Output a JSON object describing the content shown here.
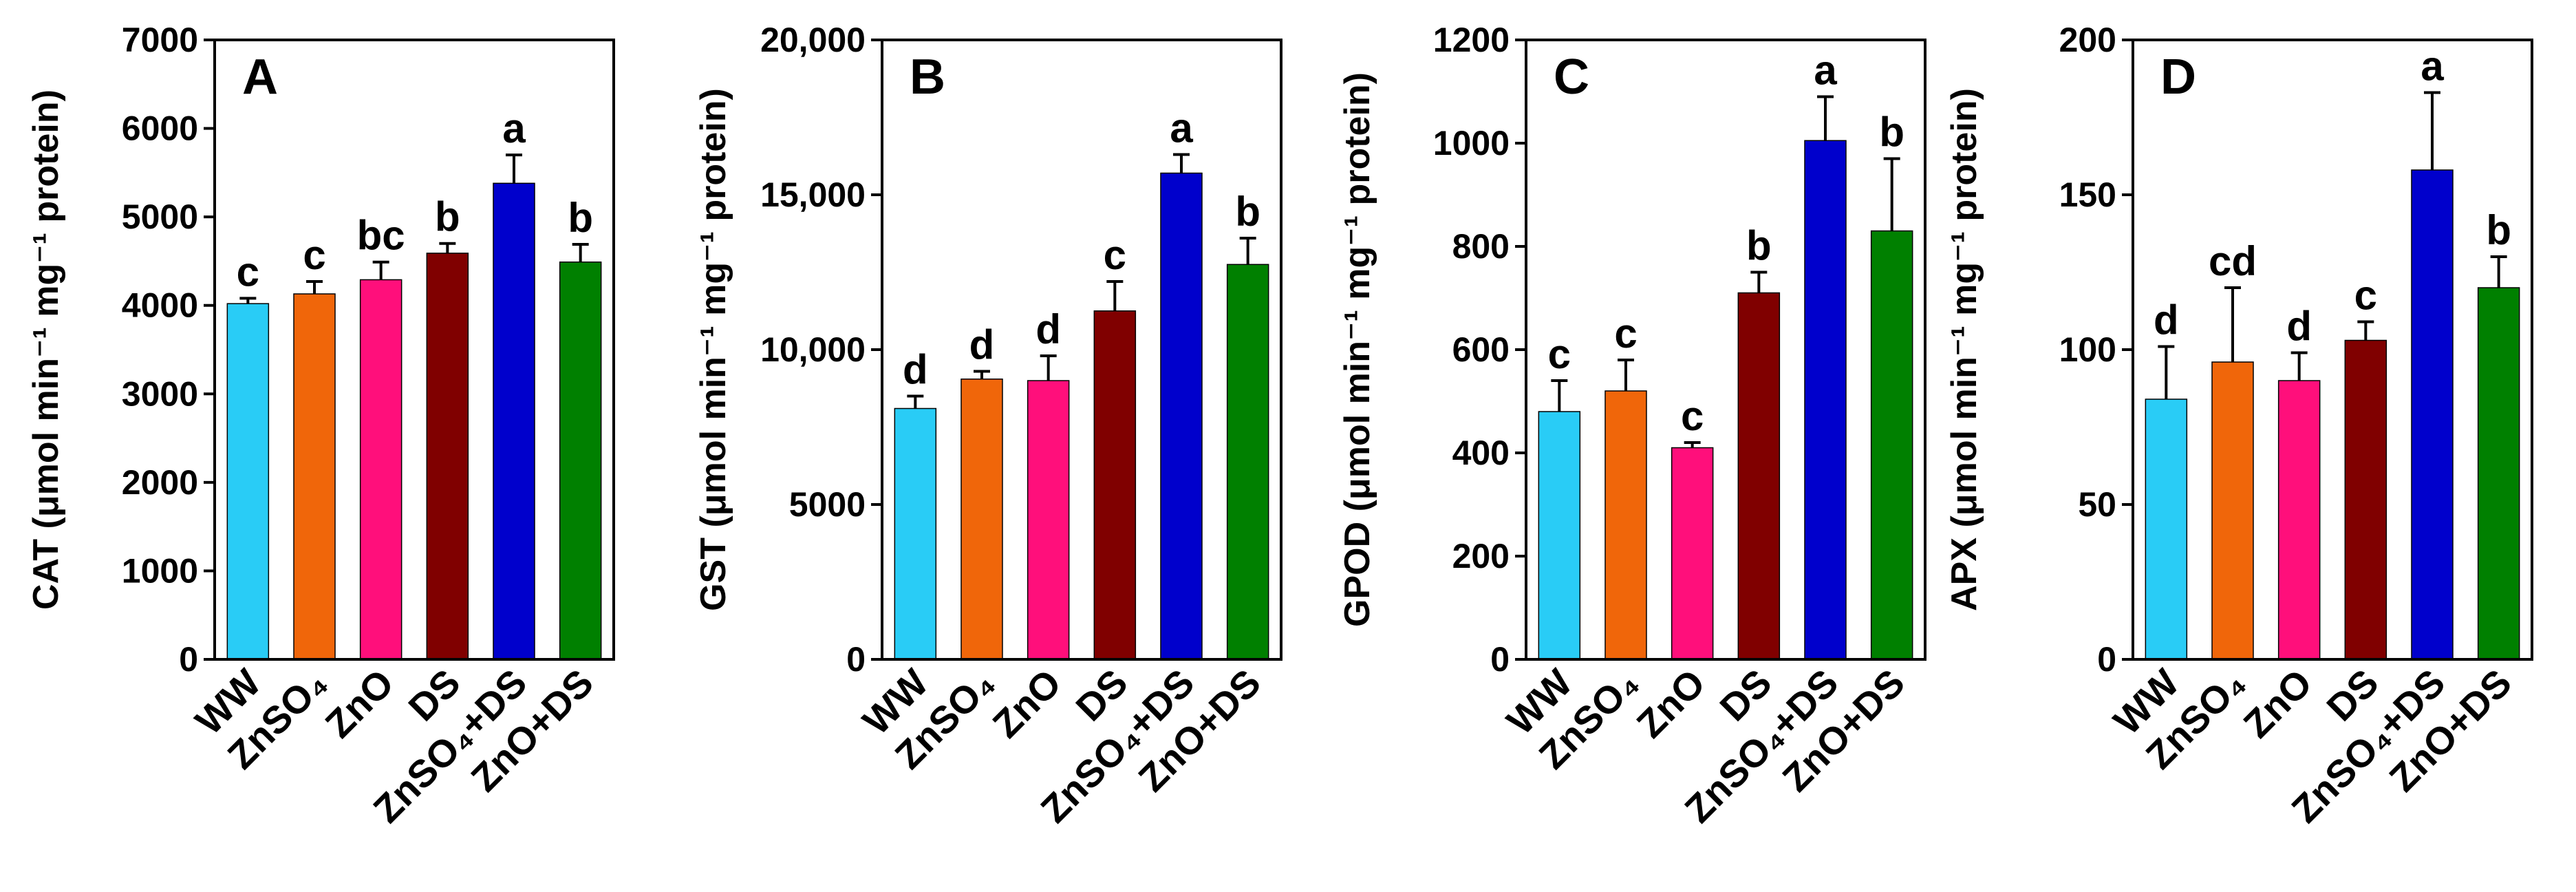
{
  "chart_data": [
    {
      "type": "bar",
      "panel": "A",
      "ylabel": "CAT (μmol min⁻¹ mg⁻¹ protein)",
      "ylim": [
        0,
        7000
      ],
      "yticks": [
        0,
        1000,
        2000,
        3000,
        4000,
        5000,
        6000,
        7000
      ],
      "ytick_labels": [
        "0",
        "1000",
        "2000",
        "3000",
        "4000",
        "5000",
        "6000",
        "7000"
      ],
      "categories": [
        "WW",
        "ZnSO₄",
        "ZnO",
        "DS",
        "ZnSO₄+DS",
        "ZnO+DS"
      ],
      "values": [
        4020,
        4130,
        4290,
        4590,
        5380,
        4490
      ],
      "errors": [
        60,
        140,
        200,
        110,
        320,
        200
      ],
      "significance": [
        "c",
        "c",
        "bc",
        "b",
        "a",
        "b"
      ],
      "colors": [
        "#29ccf6",
        "#f0660a",
        "#ff0f7b",
        "#800000",
        "#0000cc",
        "#008000"
      ]
    },
    {
      "type": "bar",
      "panel": "B",
      "ylabel": "GST (μmol min⁻¹ mg⁻¹ protein)",
      "ylim": [
        0,
        20000
      ],
      "yticks": [
        0,
        5000,
        10000,
        15000,
        20000
      ],
      "ytick_labels": [
        "0",
        "5000",
        "10,000",
        "15,000",
        "20,000"
      ],
      "categories": [
        "WW",
        "ZnSO₄",
        "ZnO",
        "DS",
        "ZnSO₄+DS",
        "ZnO+DS"
      ],
      "values": [
        8100,
        9050,
        9000,
        11250,
        15700,
        12750
      ],
      "errors": [
        400,
        250,
        800,
        950,
        600,
        850
      ],
      "significance": [
        "d",
        "d",
        "d",
        "c",
        "a",
        "b"
      ],
      "colors": [
        "#29ccf6",
        "#f0660a",
        "#ff0f7b",
        "#800000",
        "#0000cc",
        "#008000"
      ]
    },
    {
      "type": "bar",
      "panel": "C",
      "ylabel": "GPOD (μmol min⁻¹ mg⁻¹ protein)",
      "ylim": [
        0,
        1200
      ],
      "yticks": [
        0,
        200,
        400,
        600,
        800,
        1000,
        1200
      ],
      "ytick_labels": [
        "0",
        "200",
        "400",
        "600",
        "800",
        "1000",
        "1200"
      ],
      "categories": [
        "WW",
        "ZnSO₄",
        "ZnO",
        "DS",
        "ZnSO₄+DS",
        "ZnO+DS"
      ],
      "values": [
        480,
        520,
        410,
        710,
        1005,
        830
      ],
      "errors": [
        60,
        60,
        10,
        40,
        85,
        140
      ],
      "significance": [
        "c",
        "c",
        "c",
        "b",
        "a",
        "b"
      ],
      "colors": [
        "#29ccf6",
        "#f0660a",
        "#ff0f7b",
        "#800000",
        "#0000cc",
        "#008000"
      ]
    },
    {
      "type": "bar",
      "panel": "D",
      "ylabel": "APX (μmol min⁻¹ mg⁻¹ protein)",
      "ylim": [
        0,
        200
      ],
      "yticks": [
        0,
        50,
        100,
        150,
        200
      ],
      "ytick_labels": [
        "0",
        "50",
        "100",
        "150",
        "200"
      ],
      "categories": [
        "WW",
        "ZnSO₄",
        "ZnO",
        "DS",
        "ZnSO₄+DS",
        "ZnO+DS"
      ],
      "values": [
        84,
        96,
        90,
        103,
        158,
        120
      ],
      "errors": [
        17,
        24,
        9,
        6,
        25,
        10
      ],
      "significance": [
        "d",
        "cd",
        "d",
        "c",
        "a",
        "b"
      ],
      "colors": [
        "#29ccf6",
        "#f0660a",
        "#ff0f7b",
        "#800000",
        "#0000cc",
        "#008000"
      ]
    }
  ]
}
